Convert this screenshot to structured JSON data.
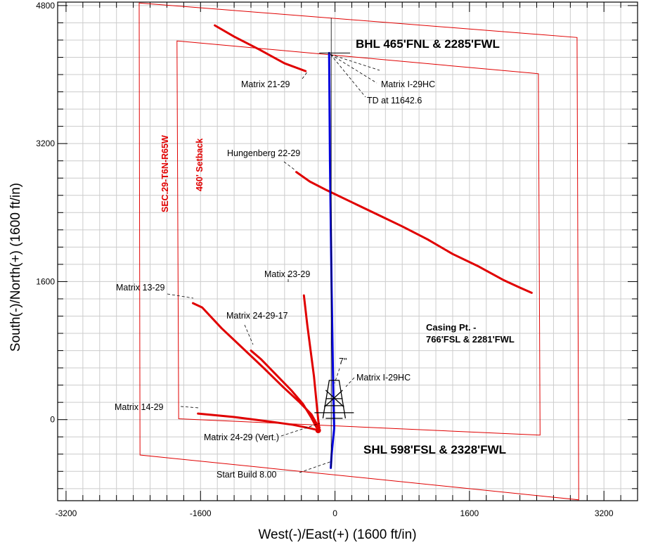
{
  "chart_data": {
    "type": "line",
    "xlabel": "West(-)/East(+) (1600 ft/in)",
    "ylabel": "South(-)/North(+) (1600 ft/in)",
    "xlim": [
      -3300,
      3600
    ],
    "ylim": [
      -940,
      4840
    ],
    "x_ticks": [
      -3200,
      -1600,
      0,
      1600,
      3200
    ],
    "y_ticks": [
      0,
      1600,
      3200,
      4800
    ],
    "grid": true,
    "colors": {
      "offset_wells": "#e00000",
      "planned_well": "#0000dd",
      "grid": "#cccccc",
      "text": "#000000"
    },
    "boundaries": [
      {
        "name": "SEC.29-T6N-R65W",
        "points": [
          [
            -2330,
            4830
          ],
          [
            2880,
            4430
          ],
          [
            2900,
            -930
          ],
          [
            -2320,
            -410
          ]
        ]
      },
      {
        "name": "460' Setback",
        "points": [
          [
            -1880,
            4390
          ],
          [
            2420,
            4010
          ],
          [
            2440,
            -180
          ],
          [
            -1860,
            10
          ]
        ]
      }
    ],
    "series": [
      {
        "name": "Matrix 21-29",
        "color": "#e00000",
        "points": [
          [
            -1430,
            4570
          ],
          [
            -1200,
            4440
          ],
          [
            -900,
            4290
          ],
          [
            -600,
            4130
          ],
          [
            -350,
            4040
          ]
        ]
      },
      {
        "name": "Hungenberg 22-29",
        "color": "#e00000",
        "points": [
          [
            -460,
            2870
          ],
          [
            -300,
            2760
          ],
          [
            -100,
            2660
          ],
          [
            200,
            2520
          ],
          [
            500,
            2380
          ],
          [
            800,
            2240
          ],
          [
            1100,
            2090
          ],
          [
            1400,
            1920
          ],
          [
            1700,
            1780
          ],
          [
            2000,
            1620
          ],
          [
            2200,
            1530
          ],
          [
            2340,
            1470
          ]
        ]
      },
      {
        "name": "Matix 23-29",
        "color": "#e00000",
        "points": [
          [
            -370,
            1440
          ],
          [
            -330,
            1100
          ],
          [
            -290,
            800
          ],
          [
            -250,
            500
          ],
          [
            -220,
            200
          ],
          [
            -200,
            0
          ],
          [
            -190,
            -80
          ]
        ]
      },
      {
        "name": "Matrix 13-29",
        "color": "#e00000",
        "points": [
          [
            -1690,
            1350
          ],
          [
            -1580,
            1300
          ],
          [
            -1350,
            1060
          ],
          [
            -1100,
            830
          ],
          [
            -850,
            600
          ],
          [
            -620,
            380
          ],
          [
            -420,
            200
          ],
          [
            -280,
            60
          ],
          [
            -200,
            -80
          ]
        ]
      },
      {
        "name": "Matrix 24-29-17",
        "color": "#e00000",
        "points": [
          [
            -1000,
            800
          ],
          [
            -880,
            700
          ],
          [
            -700,
            520
          ],
          [
            -520,
            340
          ],
          [
            -380,
            180
          ],
          [
            -280,
            20
          ],
          [
            -220,
            -90
          ]
        ]
      },
      {
        "name": "Matrix 14-29",
        "color": "#e00000",
        "points": [
          [
            -1630,
            70
          ],
          [
            -1200,
            30
          ],
          [
            -800,
            -20
          ],
          [
            -500,
            -60
          ],
          [
            -300,
            -100
          ],
          [
            -210,
            -120
          ]
        ]
      },
      {
        "name": "Matrix 24-29 (Vert.)",
        "color": "#e00000",
        "points": [
          [
            -200,
            -125
          ],
          [
            -185,
            -90
          ]
        ]
      },
      {
        "name": "Matrix I-29HC",
        "color": "#0000dd",
        "points": [
          [
            -50,
            -560
          ],
          [
            -40,
            -400
          ],
          [
            -10,
            -100
          ],
          [
            -20,
            300
          ],
          [
            -40,
            1500
          ],
          [
            -60,
            3000
          ],
          [
            -70,
            4250
          ]
        ]
      }
    ],
    "annotations": [
      {
        "id": "bhl",
        "text": "BHL 465'FNL & 2285'FWL"
      },
      {
        "id": "matrix_i29hc_top",
        "text": "Matrix I-29HC"
      },
      {
        "id": "td",
        "text": "TD at 11642.6"
      },
      {
        "id": "matrix_21_29",
        "text": "Matrix 21-29"
      },
      {
        "id": "section",
        "text": "SEC.29-T6N-R65W"
      },
      {
        "id": "setback",
        "text": "460' Setback"
      },
      {
        "id": "hungenberg",
        "text": "Hungenberg 22-29"
      },
      {
        "id": "matix_23_29",
        "text": "Matix 23-29"
      },
      {
        "id": "matrix_13_29",
        "text": "Matrix 13-29"
      },
      {
        "id": "matrix_24_29_17",
        "text": "Matrix 24-29-17"
      },
      {
        "id": "casing_1",
        "text": "Casing Pt. -"
      },
      {
        "id": "casing_2",
        "text": "766'FSL & 2281'FWL"
      },
      {
        "id": "seven_in",
        "text": "7\""
      },
      {
        "id": "matrix_i29hc_low",
        "text": "Matrix I-29HC"
      },
      {
        "id": "matrix_14_29",
        "text": "Matrix 14-29"
      },
      {
        "id": "matrix_24_29_vert",
        "text": "Matrix 24-29 (Vert.)"
      },
      {
        "id": "shl",
        "text": "SHL 598'FSL & 2328'FWL"
      },
      {
        "id": "start_build",
        "text": "Start Build 8.00"
      }
    ]
  }
}
